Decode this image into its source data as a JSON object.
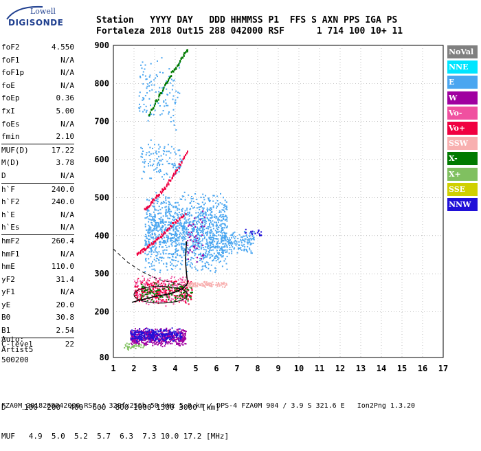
{
  "logo": {
    "top": "Lowell",
    "bottom": "DIGISONDE"
  },
  "header": {
    "labels": "Station   YYYY DAY   DDD HHMMSS P1  FFS S AXN PPS IGA PS",
    "values": "Fortaleza 2018 Out15 288 042000 RSF      1 714 100 10+ 11"
  },
  "params": [
    {
      "name": "foF2",
      "value": "4.550"
    },
    {
      "name": "foF1",
      "value": "N/A"
    },
    {
      "name": "foF1p",
      "value": "N/A"
    },
    {
      "name": "foE",
      "value": "N/A"
    },
    {
      "name": "foEp",
      "value": "0.36"
    },
    {
      "name": "fxI",
      "value": "5.00"
    },
    {
      "name": "foEs",
      "value": "N/A"
    },
    {
      "name": "fmin",
      "value": "2.10"
    },
    {
      "name": "MUF(D)",
      "value": "17.22"
    },
    {
      "name": "M(D)",
      "value": "3.78"
    },
    {
      "name": "D",
      "value": "N/A"
    },
    {
      "name": "h`F",
      "value": "240.0"
    },
    {
      "name": "h`F2",
      "value": "240.0"
    },
    {
      "name": "h`E",
      "value": "N/A"
    },
    {
      "name": "h`Es",
      "value": "N/A"
    },
    {
      "name": "hmF2",
      "value": "260.4"
    },
    {
      "name": "hmF1",
      "value": "N/A"
    },
    {
      "name": "hmE",
      "value": "110.0"
    },
    {
      "name": "yF2",
      "value": "31.4"
    },
    {
      "name": "yF1",
      "value": "N/A"
    },
    {
      "name": "yE",
      "value": "20.0"
    },
    {
      "name": "B0",
      "value": "30.8"
    },
    {
      "name": "B1",
      "value": "2.54"
    },
    {
      "name": "C-level",
      "value": "22"
    }
  ],
  "auto": {
    "line1": "Auto:",
    "line2": "Artist5",
    "line3": "500200"
  },
  "legend": [
    {
      "label": "NoVal",
      "color": "#808080"
    },
    {
      "label": "NNE",
      "color": "#00e5ff"
    },
    {
      "label": "E",
      "color": "#4aa6f0"
    },
    {
      "label": "W",
      "color": "#a000a0"
    },
    {
      "label": "Vo-",
      "color": "#f050a0"
    },
    {
      "label": "Vo+",
      "color": "#f00040"
    },
    {
      "label": "SSW",
      "color": "#f8b0b0"
    },
    {
      "label": "X-",
      "color": "#007a00"
    },
    {
      "label": "X+",
      "color": "#80c060"
    },
    {
      "label": "SSE",
      "color": "#d0d000"
    },
    {
      "label": "NNW",
      "color": "#2010d8"
    }
  ],
  "bottom": {
    "d_row": "D    100  200  400  600  800 1000 1500 3000 [km]",
    "muf_row": "MUF   4.9  5.0  5.2  5.7  6.3  7.3 10.0 17.2 [MHz]"
  },
  "footer": "FZA0M_2018288042000.RSF / 320fx256h 50 kHz 5.0 km / DPS-4 FZA0M 904 / 3.9 S 321.6 E   Ion2Png 1.3.20",
  "chart_data": {
    "type": "scatter",
    "title": "",
    "xlabel": "",
    "ylabel": "",
    "xlim": [
      1,
      17
    ],
    "ylim": [
      80,
      900
    ],
    "xticks": [
      1,
      2,
      3,
      4,
      5,
      6,
      7,
      8,
      9,
      10,
      11,
      12,
      13,
      14,
      15,
      16,
      17
    ],
    "yticks": [
      80,
      200,
      300,
      400,
      500,
      600,
      700,
      800,
      900
    ],
    "grid": true,
    "clusters": [
      {
        "name": "E",
        "color": "#4aa6f0",
        "x": [
          2.5,
          6.5
        ],
        "y": [
          300,
          520
        ],
        "n": 1300
      },
      {
        "name": "E",
        "color": "#4aa6f0",
        "x": [
          6.2,
          7.8
        ],
        "y": [
          350,
          420
        ],
        "n": 160
      },
      {
        "name": "E",
        "color": "#4aa6f0",
        "x": [
          2.3,
          4.3
        ],
        "y": [
          540,
          660
        ],
        "n": 120
      },
      {
        "name": "E",
        "color": "#4aa6f0",
        "x": [
          2.2,
          4.2
        ],
        "y": [
          670,
          880
        ],
        "n": 120
      },
      {
        "name": "W",
        "color": "#a000a0",
        "x": [
          1.8,
          4.5
        ],
        "y": [
          110,
          160
        ],
        "n": 520
      },
      {
        "name": "NNW",
        "color": "#2010d8",
        "x": [
          1.8,
          4.3
        ],
        "y": [
          120,
          160
        ],
        "n": 250
      },
      {
        "name": "Vo-",
        "color": "#f050a0",
        "x": [
          2.0,
          4.6
        ],
        "y": [
          215,
          300
        ],
        "n": 260
      },
      {
        "name": "Vo+",
        "color": "#f00040",
        "x": [
          2.0,
          4.8
        ],
        "y": [
          220,
          290
        ],
        "n": 200
      },
      {
        "name": "X-",
        "color": "#007a00",
        "x": [
          2.3,
          4.8
        ],
        "y": [
          225,
          280
        ],
        "n": 120
      },
      {
        "name": "SSW",
        "color": "#f8b0b0",
        "x": [
          4.5,
          6.5
        ],
        "y": [
          265,
          282
        ],
        "n": 110
      },
      {
        "name": "W",
        "color": "#a000a0",
        "x": [
          4.5,
          5.4
        ],
        "y": [
          300,
          480
        ],
        "n": 45
      },
      {
        "name": "NNW",
        "color": "#2010d8",
        "x": [
          7.3,
          8.2
        ],
        "y": [
          400,
          420
        ],
        "n": 20
      },
      {
        "name": "X+",
        "color": "#80c060",
        "x": [
          1.5,
          2.5
        ],
        "y": [
          100,
          120
        ],
        "n": 40
      }
    ],
    "traces": [
      {
        "name": "F2-2hop",
        "color": "#f00040",
        "points": [
          [
            2.5,
            470
          ],
          [
            3.0,
            500
          ],
          [
            3.5,
            530
          ],
          [
            4.0,
            570
          ],
          [
            4.6,
            630
          ]
        ]
      },
      {
        "name": "F2-3hop",
        "color": "#007a00",
        "points": [
          [
            2.7,
            720
          ],
          [
            3.2,
            770
          ],
          [
            3.7,
            820
          ],
          [
            4.2,
            860
          ],
          [
            4.6,
            895
          ]
        ]
      },
      {
        "name": "F-upper",
        "color": "#f00040",
        "points": [
          [
            2.1,
            355
          ],
          [
            2.6,
            370
          ],
          [
            3.2,
            395
          ],
          [
            3.8,
            430
          ],
          [
            4.5,
            460
          ]
        ]
      }
    ],
    "profile": {
      "name": "profile",
      "color": "#000000",
      "points": [
        [
          1.9,
          225
        ],
        [
          2.4,
          232
        ],
        [
          3.0,
          240
        ],
        [
          3.6,
          246
        ],
        [
          4.0,
          252
        ],
        [
          4.4,
          262
        ],
        [
          4.6,
          275
        ],
        [
          4.55,
          300
        ],
        [
          4.5,
          330
        ],
        [
          4.52,
          360
        ],
        [
          4.55,
          385
        ]
      ]
    },
    "dashed": {
      "name": "dashed",
      "color": "#000000",
      "points": [
        [
          1.0,
          365
        ],
        [
          1.7,
          330
        ],
        [
          2.4,
          305
        ],
        [
          3.2,
          285
        ],
        [
          4.0,
          275
        ],
        [
          4.6,
          268
        ]
      ]
    },
    "ellipse": {
      "color": "#000000",
      "cx": 3.3,
      "cy": 245,
      "rx": 1.3,
      "ry": 22
    }
  }
}
